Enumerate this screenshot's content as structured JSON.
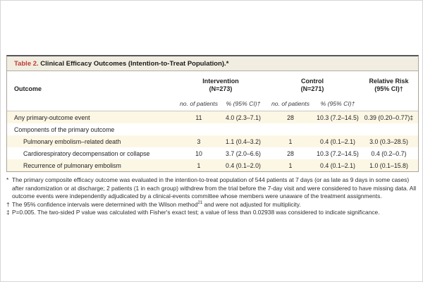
{
  "colors": {
    "accent_red": "#c13a31",
    "title_bar_bg": "#f1ede1",
    "row_shade_bg": "#fcf7e5",
    "border_dark": "#55565a",
    "border_light": "#a9a49a"
  },
  "table": {
    "title_label": "Table 2.",
    "title_text": " Clinical Efficacy Outcomes (Intention-to-Treat Population).*",
    "outcome_header": "Outcome",
    "groups": [
      {
        "line1": "Intervention",
        "line2": "(N=273)"
      },
      {
        "line1": "Control",
        "line2": "(N=271)"
      },
      {
        "line1": "Relative Risk",
        "line2": "(95% CI)†"
      }
    ],
    "subheaders": {
      "int_n": "no. of patients",
      "int_pct": "% (95% CI)†",
      "ctrl_n": "no. of patients",
      "ctrl_pct": "% (95% CI)†"
    },
    "rows": [
      {
        "label": "Any primary-outcome event",
        "int_n": "11",
        "int_pct": "4.0 (2.3–7.1)",
        "ctrl_n": "28",
        "ctrl_pct": "10.3 (7.2–14.5)",
        "rr": "0.39 (0.20–0.77)‡"
      },
      {
        "label": "Components of the primary outcome",
        "int_n": "",
        "int_pct": "",
        "ctrl_n": "",
        "ctrl_pct": "",
        "rr": ""
      },
      {
        "label": "Pulmonary embolism–related death",
        "int_n": "3",
        "int_pct": "1.1 (0.4–3.2)",
        "ctrl_n": "1",
        "ctrl_pct": "0.4 (0.1–2.1)",
        "rr": "3.0 (0.3–28.5)"
      },
      {
        "label": "Cardiorespiratory decompensation or collapse",
        "int_n": "10",
        "int_pct": "3.7 (2.0–6.6)",
        "ctrl_n": "28",
        "ctrl_pct": "10.3 (7.2–14.5)",
        "rr": "0.4 (0.2–0.7)"
      },
      {
        "label": "Recurrence of pulmonary embolism",
        "int_n": "1",
        "int_pct": "0.4 (0.1–2.0)",
        "ctrl_n": "1",
        "ctrl_pct": "0.4 (0.1–2.1)",
        "rr": "1.0 (0.1–15.8)"
      }
    ]
  },
  "footnotes": {
    "fn1": {
      "symbol": "*",
      "text": "The primary composite efficacy outcome was evaluated in the intention-to-treat population of 544 patients at 7 days (or as late as 9 days in some cases) after randomization or at discharge; 2 patients (1 in each group) withdrew from the trial before the 7-day visit and were considered to have missing data. All outcome events were independently adjudicated by a clinical-events committee whose members were unaware of the treatment assignments."
    },
    "fn2": {
      "symbol": "†",
      "text_pre": "The 95% confidence intervals were determined with the Wilson method",
      "sup": "21",
      "text_post": " and were not adjusted for multiplicity."
    },
    "fn3": {
      "symbol": "‡",
      "text": "P=0.005. The two-sided P value was calculated with Fisher's exact test; a value of less than 0.02938 was considered to indicate significance."
    }
  }
}
